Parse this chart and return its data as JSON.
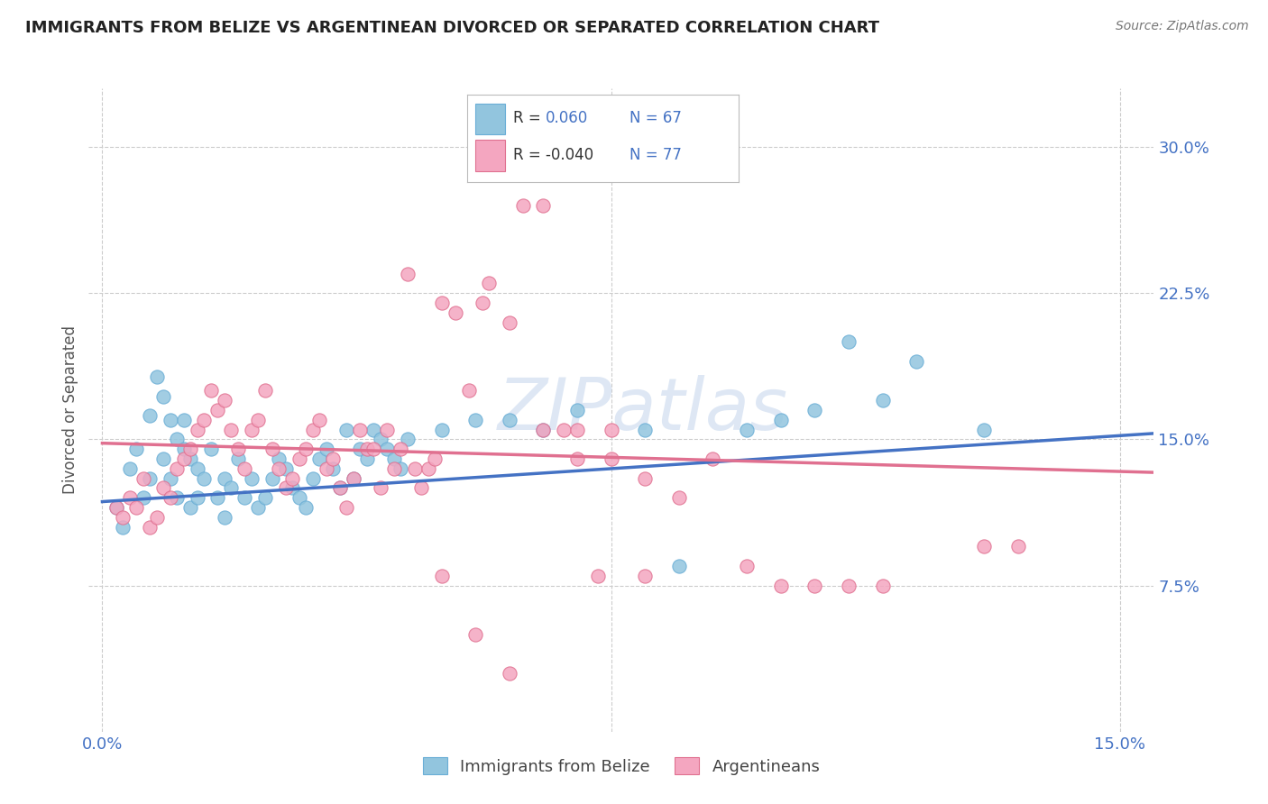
{
  "title": "IMMIGRANTS FROM BELIZE VS ARGENTINEAN DIVORCED OR SEPARATED CORRELATION CHART",
  "source": "Source: ZipAtlas.com",
  "ylabel": "Divorced or Separated",
  "y_ticks": [
    0.0,
    0.075,
    0.15,
    0.225,
    0.3
  ],
  "y_tick_labels": [
    "",
    "7.5%",
    "15.0%",
    "22.5%",
    "30.0%"
  ],
  "x_ticks": [
    0.0,
    0.15
  ],
  "x_tick_labels": [
    "0.0%",
    "15.0%"
  ],
  "xlim": [
    -0.002,
    0.155
  ],
  "ylim": [
    0.0,
    0.33
  ],
  "color_blue": "#92C5DE",
  "color_blue_edge": "#6AAED6",
  "color_pink": "#F4A6C0",
  "color_pink_edge": "#E07090",
  "color_text_blue": "#4472C4",
  "color_trend_blue": "#4472C4",
  "color_trend_pink": "#E07090",
  "watermark": "ZIPatlas",
  "watermark_color": "#C8D8EE",
  "blue_trend_x": [
    0.0,
    0.155
  ],
  "blue_trend_y": [
    0.118,
    0.153
  ],
  "pink_trend_x": [
    0.0,
    0.155
  ],
  "pink_trend_y": [
    0.148,
    0.133
  ],
  "blue_points": [
    [
      0.002,
      0.115
    ],
    [
      0.003,
      0.105
    ],
    [
      0.004,
      0.135
    ],
    [
      0.005,
      0.145
    ],
    [
      0.006,
      0.12
    ],
    [
      0.007,
      0.13
    ],
    [
      0.007,
      0.162
    ],
    [
      0.008,
      0.182
    ],
    [
      0.009,
      0.172
    ],
    [
      0.009,
      0.14
    ],
    [
      0.01,
      0.16
    ],
    [
      0.01,
      0.13
    ],
    [
      0.011,
      0.15
    ],
    [
      0.011,
      0.12
    ],
    [
      0.012,
      0.145
    ],
    [
      0.012,
      0.16
    ],
    [
      0.013,
      0.115
    ],
    [
      0.013,
      0.14
    ],
    [
      0.014,
      0.135
    ],
    [
      0.014,
      0.12
    ],
    [
      0.015,
      0.13
    ],
    [
      0.016,
      0.145
    ],
    [
      0.017,
      0.12
    ],
    [
      0.018,
      0.11
    ],
    [
      0.018,
      0.13
    ],
    [
      0.019,
      0.125
    ],
    [
      0.02,
      0.14
    ],
    [
      0.021,
      0.12
    ],
    [
      0.022,
      0.13
    ],
    [
      0.023,
      0.115
    ],
    [
      0.024,
      0.12
    ],
    [
      0.025,
      0.13
    ],
    [
      0.026,
      0.14
    ],
    [
      0.027,
      0.135
    ],
    [
      0.028,
      0.125
    ],
    [
      0.029,
      0.12
    ],
    [
      0.03,
      0.115
    ],
    [
      0.031,
      0.13
    ],
    [
      0.032,
      0.14
    ],
    [
      0.033,
      0.145
    ],
    [
      0.034,
      0.135
    ],
    [
      0.035,
      0.125
    ],
    [
      0.036,
      0.155
    ],
    [
      0.037,
      0.13
    ],
    [
      0.038,
      0.145
    ],
    [
      0.039,
      0.14
    ],
    [
      0.04,
      0.155
    ],
    [
      0.041,
      0.15
    ],
    [
      0.042,
      0.145
    ],
    [
      0.043,
      0.14
    ],
    [
      0.044,
      0.135
    ],
    [
      0.045,
      0.15
    ],
    [
      0.05,
      0.155
    ],
    [
      0.055,
      0.16
    ],
    [
      0.06,
      0.16
    ],
    [
      0.065,
      0.155
    ],
    [
      0.07,
      0.165
    ],
    [
      0.08,
      0.155
    ],
    [
      0.085,
      0.085
    ],
    [
      0.095,
      0.155
    ],
    [
      0.1,
      0.16
    ],
    [
      0.105,
      0.165
    ],
    [
      0.11,
      0.2
    ],
    [
      0.115,
      0.17
    ],
    [
      0.12,
      0.19
    ],
    [
      0.13,
      0.155
    ]
  ],
  "pink_points": [
    [
      0.002,
      0.115
    ],
    [
      0.003,
      0.11
    ],
    [
      0.004,
      0.12
    ],
    [
      0.005,
      0.115
    ],
    [
      0.006,
      0.13
    ],
    [
      0.007,
      0.105
    ],
    [
      0.008,
      0.11
    ],
    [
      0.009,
      0.125
    ],
    [
      0.01,
      0.12
    ],
    [
      0.011,
      0.135
    ],
    [
      0.012,
      0.14
    ],
    [
      0.013,
      0.145
    ],
    [
      0.014,
      0.155
    ],
    [
      0.015,
      0.16
    ],
    [
      0.016,
      0.175
    ],
    [
      0.017,
      0.165
    ],
    [
      0.018,
      0.17
    ],
    [
      0.019,
      0.155
    ],
    [
      0.02,
      0.145
    ],
    [
      0.021,
      0.135
    ],
    [
      0.022,
      0.155
    ],
    [
      0.023,
      0.16
    ],
    [
      0.024,
      0.175
    ],
    [
      0.025,
      0.145
    ],
    [
      0.026,
      0.135
    ],
    [
      0.027,
      0.125
    ],
    [
      0.028,
      0.13
    ],
    [
      0.029,
      0.14
    ],
    [
      0.03,
      0.145
    ],
    [
      0.031,
      0.155
    ],
    [
      0.032,
      0.16
    ],
    [
      0.033,
      0.135
    ],
    [
      0.034,
      0.14
    ],
    [
      0.035,
      0.125
    ],
    [
      0.036,
      0.115
    ],
    [
      0.037,
      0.13
    ],
    [
      0.038,
      0.155
    ],
    [
      0.039,
      0.145
    ],
    [
      0.04,
      0.145
    ],
    [
      0.041,
      0.125
    ],
    [
      0.042,
      0.155
    ],
    [
      0.043,
      0.135
    ],
    [
      0.044,
      0.145
    ],
    [
      0.045,
      0.235
    ],
    [
      0.046,
      0.135
    ],
    [
      0.047,
      0.125
    ],
    [
      0.048,
      0.135
    ],
    [
      0.049,
      0.14
    ],
    [
      0.05,
      0.22
    ],
    [
      0.052,
      0.215
    ],
    [
      0.054,
      0.175
    ],
    [
      0.056,
      0.22
    ],
    [
      0.057,
      0.23
    ],
    [
      0.06,
      0.21
    ],
    [
      0.062,
      0.27
    ],
    [
      0.065,
      0.27
    ],
    [
      0.068,
      0.155
    ],
    [
      0.07,
      0.155
    ],
    [
      0.075,
      0.14
    ],
    [
      0.08,
      0.13
    ],
    [
      0.085,
      0.12
    ],
    [
      0.09,
      0.14
    ],
    [
      0.095,
      0.085
    ],
    [
      0.1,
      0.075
    ],
    [
      0.105,
      0.075
    ],
    [
      0.11,
      0.075
    ],
    [
      0.115,
      0.075
    ],
    [
      0.08,
      0.08
    ],
    [
      0.073,
      0.08
    ],
    [
      0.05,
      0.08
    ],
    [
      0.055,
      0.05
    ],
    [
      0.06,
      0.03
    ],
    [
      0.065,
      0.155
    ],
    [
      0.07,
      0.14
    ],
    [
      0.075,
      0.155
    ],
    [
      0.13,
      0.095
    ],
    [
      0.135,
      0.095
    ]
  ]
}
